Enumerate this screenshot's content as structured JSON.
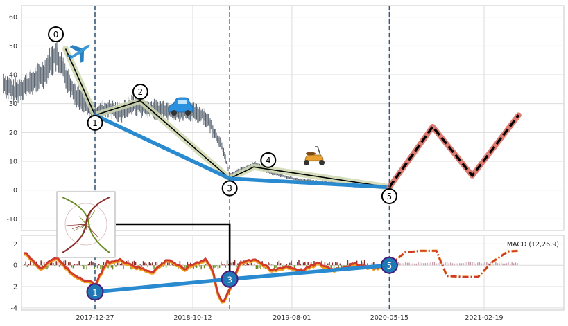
{
  "chart_data": [
    {
      "type": "line",
      "panel": "price",
      "ylim": [
        -14,
        64
      ],
      "y_ticks": [
        -10,
        0,
        10,
        20,
        30,
        40,
        50,
        60
      ],
      "grid": true,
      "x_ticks": [
        "2017-12-27",
        "2018-10-12",
        "2019-08-01",
        "2020-05-15",
        "2021-02-19"
      ],
      "vertical_markers": [
        "2017-12-27",
        "2019-01-29",
        "2020-05-15"
      ],
      "price_series": {
        "name": "price",
        "x": [
          "2017-04-01",
          "2017-05-01",
          "2017-06-01",
          "2017-07-01",
          "2017-08-01",
          "2017-09-01",
          "2017-10-01",
          "2017-11-01",
          "2017-12-01",
          "2017-12-27",
          "2018-02-01",
          "2018-03-15",
          "2018-04-20",
          "2018-06-01",
          "2018-07-15",
          "2018-09-01",
          "2018-10-12",
          "2018-11-15",
          "2018-12-15",
          "2019-01-10",
          "2019-01-29",
          "2019-03-01",
          "2019-04-15",
          "2019-06-01",
          "2019-08-01",
          "2019-10-01",
          "2019-12-01",
          "2020-02-01",
          "2020-04-01",
          "2020-05-15"
        ],
        "values": [
          37,
          34,
          36,
          38,
          41,
          47,
          40,
          33,
          30,
          27,
          28,
          27,
          30,
          28,
          28,
          27,
          27,
          26,
          20,
          14,
          5,
          7,
          9,
          6,
          4,
          3,
          2.5,
          1.5,
          1.2,
          0.9
        ]
      },
      "wave_points": [
        {
          "label": "0",
          "x": "2017-10-01",
          "y": 49
        },
        {
          "label": "1",
          "x": "2017-12-27",
          "y": 26
        },
        {
          "label": "2",
          "x": "2018-05-10",
          "y": 31
        },
        {
          "label": "3",
          "x": "2019-01-29",
          "y": 4
        },
        {
          "label": "4",
          "x": "2019-04-10",
          "y": 8
        },
        {
          "label": "5",
          "x": "2020-05-15",
          "y": 1
        }
      ],
      "trend_line": [
        {
          "x": "2017-12-27",
          "y": 26
        },
        {
          "x": "2019-01-29",
          "y": 4
        },
        {
          "x": "2020-05-15",
          "y": 1
        }
      ],
      "projection": [
        {
          "x": "2020-05-15",
          "y": 1
        },
        {
          "x": "2020-09-20",
          "y": 22
        },
        {
          "x": "2021-01-15",
          "y": 5
        },
        {
          "x": "2021-06-01",
          "y": 26
        }
      ],
      "icons": [
        "airplane-icon",
        "car-icon",
        "scooter-icon"
      ],
      "colors": {
        "price": "#5a6470",
        "wave_fill": "#cfd8b0",
        "wave_line": "#000000",
        "trend": "#2a8ad0",
        "projection_outer": "#e07a70",
        "projection_inner": "#000000",
        "marker": "#3c5878"
      }
    },
    {
      "type": "line",
      "panel": "macd",
      "title": "MACD (12,26,9)",
      "ylim": [
        -4.2,
        2.8
      ],
      "y_ticks": [
        -4,
        -2,
        0,
        2
      ],
      "grid": true,
      "macd_series": {
        "x": [
          "2017-06-01",
          "2017-07-20",
          "2017-09-01",
          "2017-10-20",
          "2017-12-01",
          "2017-12-27",
          "2018-02-01",
          "2018-03-15",
          "2018-05-01",
          "2018-06-15",
          "2018-08-01",
          "2018-09-15",
          "2018-10-20",
          "2018-11-20",
          "2018-12-10",
          "2018-12-25",
          "2019-01-10",
          "2019-01-29",
          "2019-03-01",
          "2019-04-15",
          "2019-06-01",
          "2019-07-15",
          "2019-09-01",
          "2019-10-15",
          "2019-12-01",
          "2020-02-01",
          "2020-04-01",
          "2020-05-15"
        ],
        "values": [
          1.2,
          -0.3,
          0.8,
          -0.8,
          -1.4,
          -1.8,
          0.3,
          0.5,
          -0.2,
          -0.6,
          0.6,
          -0.4,
          0.2,
          0.6,
          -0.5,
          -2.5,
          -3.6,
          -2.2,
          0.3,
          0.6,
          -0.5,
          -0.1,
          -0.5,
          0.2,
          -0.4,
          0.1,
          -0.2,
          0.0
        ]
      },
      "macd_projection": {
        "x": [
          "2020-05-15",
          "2020-07-01",
          "2020-08-15",
          "2020-10-01",
          "2020-11-01",
          "2020-12-20",
          "2021-02-01",
          "2021-03-15",
          "2021-05-01",
          "2021-06-01"
        ],
        "values": [
          0.0,
          1.2,
          1.35,
          1.35,
          -1.0,
          -1.1,
          -1.1,
          0.3,
          1.3,
          1.35
        ]
      },
      "wave_points": [
        {
          "label": "1",
          "x": "2017-12-27",
          "y": -2.5
        },
        {
          "label": "3",
          "x": "2019-01-29",
          "y": -1.3
        },
        {
          "label": "5",
          "x": "2020-05-15",
          "y": 0.0
        }
      ],
      "colors": {
        "macd": "#d03a2a",
        "signal": "#f0a020",
        "hist_up": "#8a2a2a",
        "hist_down": "#6a8a20",
        "proj_hist": "#c59aaa",
        "marker_fill": "#1f77b4",
        "marker_edge": "#4a1a7a"
      }
    }
  ]
}
